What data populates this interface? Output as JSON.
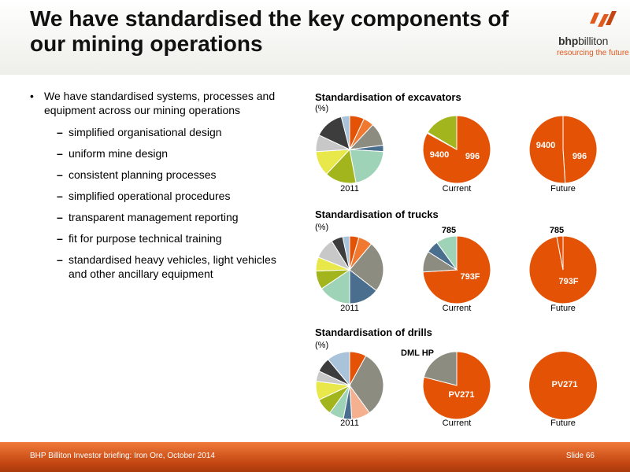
{
  "header": {
    "title_line1": "We have standardised the key components of",
    "title_line2": "our mining operations",
    "logo_brand_bold": "bhp",
    "logo_brand_rest": "billiton",
    "logo_tagline": "resourcing the future"
  },
  "bullets": {
    "main": "We have standardised systems, processes and equipment across our mining operations",
    "subs": [
      "simplified organisational design",
      "uniform mine design",
      "consistent planning processes",
      "simplified operational procedures",
      "transparent management reporting",
      "fit for purpose technical training",
      "standardised heavy vehicles, light vehicles and other ancillary equipment"
    ]
  },
  "colors": {
    "accent": "#e35205",
    "gray": "#8c8c80",
    "dark": "#3d3d3d",
    "light_gray": "#c8c8c8",
    "yellow": "#e8e84a",
    "olive": "#a3b51c",
    "mint": "#9fd3b8",
    "blue": "#4a6e8e",
    "steel": "#6f8fa8",
    "peach": "#f5b08f",
    "light_blue": "#a9c3da"
  },
  "chart_data": [
    {
      "type": "pie",
      "title": "Standardisation of excavators",
      "unit": "(%)",
      "pies": [
        {
          "label": "2011",
          "slices": [
            {
              "value": 7,
              "color": "#e35205"
            },
            {
              "value": 5,
              "color": "#f07830"
            },
            {
              "value": 11,
              "color": "#8c8c80"
            },
            {
              "value": 3,
              "color": "#4a6e8e"
            },
            {
              "value": 21,
              "color": "#9fd3b8"
            },
            {
              "value": 15,
              "color": "#a3b51c"
            },
            {
              "value": 12,
              "color": "#e8e84a"
            },
            {
              "value": 8,
              "color": "#c8c8c8"
            },
            {
              "value": 14,
              "color": "#3d3d3d"
            },
            {
              "value": 4,
              "color": "#a9c3da"
            }
          ]
        },
        {
          "label": "Current",
          "slices": [
            {
              "label": "996",
              "value": 83,
              "color": "#e35205"
            },
            {
              "label": "9400",
              "value": 0.5,
              "color": "#ffffff"
            },
            {
              "value": 16.5,
              "color": "#a3b51c"
            }
          ]
        },
        {
          "label": "Future",
          "slices": [
            {
              "label": "996",
              "value": 49,
              "color": "#e35205"
            },
            {
              "label": "9400",
              "value": 51,
              "color": "#e35205"
            }
          ]
        }
      ]
    },
    {
      "type": "pie",
      "title": "Standardisation of trucks",
      "unit": "(%)",
      "pies": [
        {
          "label": "2011",
          "slices": [
            {
              "value": 4,
              "color": "#e35205"
            },
            {
              "value": 6,
              "color": "#f07830"
            },
            {
              "value": 22,
              "color": "#8c8c80"
            },
            {
              "value": 13,
              "color": "#4a6e8e"
            },
            {
              "value": 14,
              "color": "#9fd3b8"
            },
            {
              "value": 8,
              "color": "#a3b51c"
            },
            {
              "value": 6,
              "color": "#e8e84a"
            },
            {
              "value": 9,
              "color": "#c8c8c8"
            },
            {
              "value": 5,
              "color": "#3d3d3d"
            },
            {
              "value": 3,
              "color": "#a9c3da"
            }
          ]
        },
        {
          "label": "Current",
          "slices": [
            {
              "label": "793F",
              "value": 74,
              "color": "#e35205"
            },
            {
              "value": 10,
              "color": "#8c8c80"
            },
            {
              "value": 6,
              "color": "#4a6e8e"
            },
            {
              "label": "785",
              "value": 10,
              "color": "#9fd3b8"
            }
          ]
        },
        {
          "label": "Future",
          "slices": [
            {
              "label": "793F",
              "value": 97,
              "color": "#e35205"
            },
            {
              "label": "785",
              "value": 3,
              "color": "#e35205"
            }
          ]
        }
      ]
    },
    {
      "type": "pie",
      "title": "Standardisation of drills",
      "unit": "(%)",
      "pies": [
        {
          "label": "2011",
          "slices": [
            {
              "value": 8,
              "color": "#e35205"
            },
            {
              "value": 32,
              "color": "#8c8c80"
            },
            {
              "value": 9,
              "color": "#f5b08f"
            },
            {
              "value": 4,
              "color": "#4a6e8e"
            },
            {
              "value": 7,
              "color": "#9fd3b8"
            },
            {
              "value": 8,
              "color": "#a3b51c"
            },
            {
              "value": 9,
              "color": "#e8e84a"
            },
            {
              "value": 5,
              "color": "#c8c8c8"
            },
            {
              "value": 7,
              "color": "#3d3d3d"
            },
            {
              "value": 11,
              "color": "#a9c3da"
            }
          ]
        },
        {
          "label": "Current",
          "slices": [
            {
              "label": "PV271",
              "value": 79,
              "color": "#e35205"
            },
            {
              "label": "DML HP",
              "value": 21,
              "color": "#8c8c80"
            }
          ]
        },
        {
          "label": "Future",
          "slices": [
            {
              "label": "PV271",
              "value": 100,
              "color": "#e35205"
            }
          ]
        }
      ]
    }
  ],
  "footer": {
    "left": "BHP Billiton Investor briefing: Iron Ore, October 2014",
    "right": "Slide 66"
  }
}
